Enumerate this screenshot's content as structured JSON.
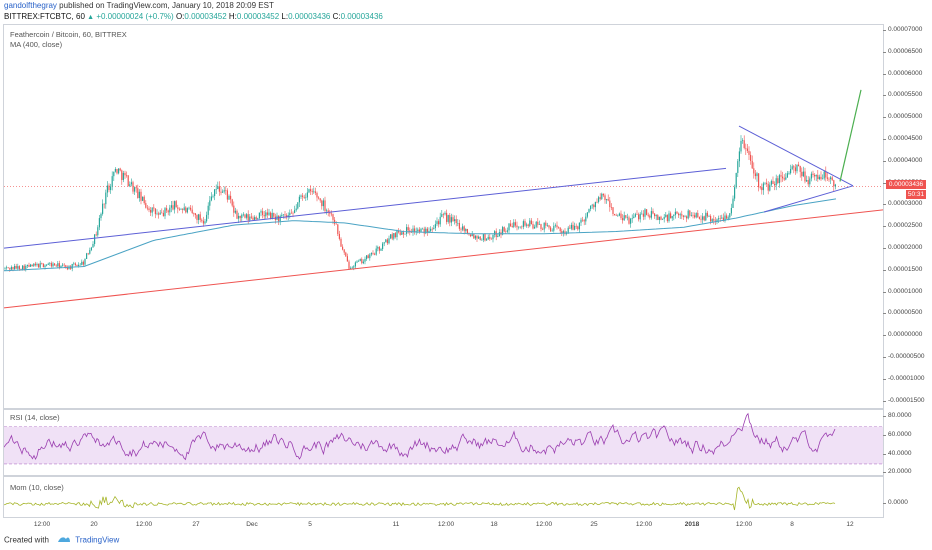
{
  "header": {
    "author": "gandolfthegray",
    "published": "published on TradingView.com, January 10, 2018 20:09 EST",
    "symbol": "BITTREX:FTCBTC, 60",
    "change": "+0.00000024 (+0.7%)",
    "o_label": "O:",
    "o_val": "0.00003452",
    "h_label": "H:",
    "h_val": "0.00003452",
    "l_label": "L:",
    "l_val": "0.00003436",
    "c_label": "C:",
    "c_val": "0.00003436"
  },
  "main_legend": {
    "title": "Feathercoin / Bitcoin, 60, BITTREX",
    "ma": "MA (400, close)"
  },
  "price_tag": "0.00003436",
  "timer_tag": "50:31",
  "rsi_legend": "RSI (14, close)",
  "mom_legend": "Mom (10, close)",
  "footer": {
    "created_with": "Created with",
    "brand": "TradingView"
  },
  "colors": {
    "up": "#26a69a",
    "down": "#ef5350",
    "ma": "#4aa3c4",
    "rsi": "#9b3fb0",
    "mom": "#a6b52a",
    "blue_line": "#5c5fd6",
    "red_line": "#ef5350",
    "green_arrow": "#4caf50"
  },
  "chart_data": {
    "type": "candlestick",
    "price_axis_ticks": [
      "0.00007000",
      "0.00006500",
      "0.00006000",
      "0.00005500",
      "0.00005000",
      "0.00004500",
      "0.00004000",
      "0.00003500",
      "0.00003000",
      "0.00002500",
      "0.00002000",
      "0.00001500",
      "0.00001000",
      "0.00000500",
      "0.00000000",
      "-0.00000500",
      "-0.00001000",
      "-0.00001500"
    ],
    "rsi_axis_ticks": [
      "80.0000",
      "60.0000",
      "40.0000",
      "20.0000"
    ],
    "mom_axis_ticks": [
      "0.0000"
    ],
    "x_axis_ticks": [
      "12:00",
      "20",
      "12:00",
      "27",
      "Dec",
      "5",
      "11",
      "12:00",
      "18",
      "12:00",
      "25",
      "12:00",
      "2018",
      "12:00",
      "8",
      "12"
    ],
    "price_series_approx": [
      [
        0,
        1.55e-05
      ],
      [
        25,
        1.6e-05
      ],
      [
        45,
        1.65e-05
      ],
      [
        65,
        1.58e-05
      ],
      [
        80,
        1.7e-05
      ],
      [
        92,
        2.35e-05
      ],
      [
        102,
        3.3e-05
      ],
      [
        112,
        3.85e-05
      ],
      [
        125,
        3.55e-05
      ],
      [
        140,
        3.05e-05
      ],
      [
        155,
        2.75e-05
      ],
      [
        170,
        3e-05
      ],
      [
        185,
        2.85e-05
      ],
      [
        200,
        2.65e-05
      ],
      [
        210,
        3.4e-05
      ],
      [
        222,
        3.3e-05
      ],
      [
        232,
        2.75e-05
      ],
      [
        245,
        2.7e-05
      ],
      [
        260,
        2.8e-05
      ],
      [
        275,
        2.7e-05
      ],
      [
        288,
        2.75e-05
      ],
      [
        298,
        3.25e-05
      ],
      [
        310,
        3.3e-05
      ],
      [
        322,
        2.95e-05
      ],
      [
        330,
        2.7e-05
      ],
      [
        338,
        2e-05
      ],
      [
        345,
        1.6e-05
      ],
      [
        360,
        1.75e-05
      ],
      [
        375,
        2e-05
      ],
      [
        390,
        2.35e-05
      ],
      [
        405,
        2.45e-05
      ],
      [
        420,
        2.4e-05
      ],
      [
        440,
        2.75e-05
      ],
      [
        455,
        2.55e-05
      ],
      [
        470,
        2.3e-05
      ],
      [
        485,
        2.25e-05
      ],
      [
        500,
        2.45e-05
      ],
      [
        515,
        2.6e-05
      ],
      [
        530,
        2.55e-05
      ],
      [
        545,
        2.5e-05
      ],
      [
        560,
        2.4e-05
      ],
      [
        575,
        2.55e-05
      ],
      [
        590,
        3.05e-05
      ],
      [
        600,
        3.2e-05
      ],
      [
        612,
        2.75e-05
      ],
      [
        625,
        2.65e-05
      ],
      [
        640,
        2.85e-05
      ],
      [
        655,
        2.7e-05
      ],
      [
        670,
        2.75e-05
      ],
      [
        685,
        2.8e-05
      ],
      [
        700,
        2.75e-05
      ],
      [
        715,
        2.65e-05
      ],
      [
        728,
        2.9e-05
      ],
      [
        736,
        4.5e-05
      ],
      [
        745,
        4.2e-05
      ],
      [
        755,
        3.5e-05
      ],
      [
        765,
        3.4e-05
      ],
      [
        778,
        3.65e-05
      ],
      [
        790,
        3.85e-05
      ],
      [
        805,
        3.6e-05
      ],
      [
        820,
        3.7e-05
      ],
      [
        832,
        3.44e-05
      ]
    ],
    "ma_series_approx": [
      [
        0,
        1.5e-05
      ],
      [
        80,
        1.6e-05
      ],
      [
        150,
        2.2e-05
      ],
      [
        230,
        2.55e-05
      ],
      [
        290,
        2.65e-05
      ],
      [
        340,
        2.6e-05
      ],
      [
        400,
        2.4e-05
      ],
      [
        470,
        2.35e-05
      ],
      [
        540,
        2.35e-05
      ],
      [
        610,
        2.4e-05
      ],
      [
        680,
        2.5e-05
      ],
      [
        730,
        2.7e-05
      ],
      [
        790,
        3e-05
      ],
      [
        832,
        3.15e-05
      ]
    ],
    "trendlines": {
      "blue_upper": [
        [
          0,
          2.02e-05
        ],
        [
          722,
          3.85e-05
        ]
      ],
      "red_lower": [
        [
          0,
          6.5e-06
        ],
        [
          880,
          2.9e-05
        ]
      ],
      "triangle_top": [
        [
          735,
          4.82e-05
        ],
        [
          849,
          3.45e-05
        ]
      ],
      "triangle_bottom": [
        [
          760,
          2.85e-05
        ],
        [
          849,
          3.45e-05
        ]
      ],
      "green_arrow": [
        [
          836,
          3.55e-05
        ],
        [
          857,
          5.65e-05
        ]
      ]
    },
    "rsi_band": [
      30,
      70
    ]
  }
}
